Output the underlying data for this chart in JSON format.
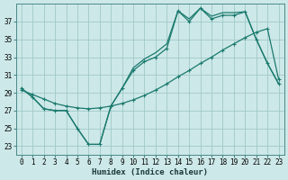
{
  "xlabel": "Humidex (Indice chaleur)",
  "bg_color": "#cde8e8",
  "grid_color": "#a0c8c8",
  "line_color": "#1a7a6e",
  "xlim": [
    -0.5,
    23.5
  ],
  "ylim": [
    22.0,
    39.0
  ],
  "yticks": [
    23,
    25,
    27,
    29,
    31,
    33,
    35,
    37
  ],
  "xticks": [
    0,
    1,
    2,
    3,
    4,
    5,
    6,
    7,
    8,
    9,
    10,
    11,
    12,
    13,
    14,
    15,
    16,
    17,
    18,
    19,
    20,
    21,
    22,
    23
  ],
  "line1_x": [
    0,
    1,
    2,
    3,
    4,
    5,
    6,
    7,
    8,
    9,
    10,
    11,
    12,
    13,
    14,
    15,
    16,
    17,
    18,
    19,
    20,
    21,
    22,
    23
  ],
  "line1_y": [
    29.5,
    28.5,
    27.2,
    27.0,
    27.0,
    25.0,
    23.2,
    23.2,
    27.5,
    29.5,
    31.5,
    32.5,
    33.0,
    34.0,
    38.2,
    37.0,
    38.5,
    37.3,
    37.7,
    37.7,
    38.1,
    35.0,
    32.3,
    30.0
  ],
  "line2_x": [
    0,
    1,
    2,
    3,
    4,
    5,
    6,
    7,
    8,
    9,
    10,
    11,
    12,
    13,
    14,
    15,
    16,
    17,
    18,
    19,
    20,
    21,
    22,
    23
  ],
  "line2_y": [
    29.5,
    28.5,
    27.2,
    27.0,
    27.0,
    25.0,
    23.2,
    23.2,
    27.5,
    29.5,
    31.8,
    32.8,
    33.5,
    34.5,
    38.2,
    37.3,
    38.5,
    37.6,
    38.0,
    38.0,
    38.1,
    35.0,
    32.3,
    30.0
  ],
  "line3_x": [
    0,
    1,
    2,
    3,
    4,
    5,
    6,
    7,
    8,
    9,
    10,
    11,
    12,
    13,
    14,
    15,
    16,
    17,
    18,
    19,
    20,
    21,
    22,
    23
  ],
  "line3_y": [
    29.3,
    28.8,
    28.3,
    27.8,
    27.5,
    27.3,
    27.2,
    27.3,
    27.5,
    27.8,
    28.2,
    28.7,
    29.3,
    30.0,
    30.8,
    31.5,
    32.3,
    33.0,
    33.8,
    34.5,
    35.2,
    35.8,
    36.2,
    30.5
  ]
}
